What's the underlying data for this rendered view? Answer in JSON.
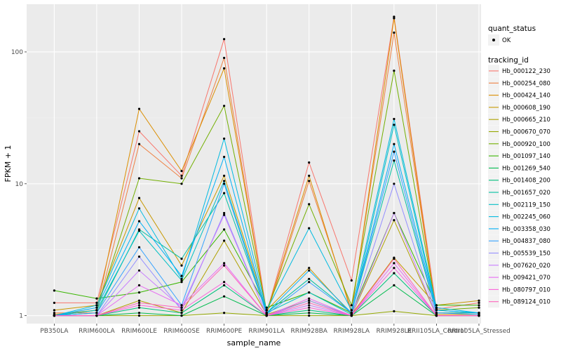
{
  "chart_data": {
    "type": "line",
    "xlabel": "sample_name",
    "ylabel": "FPKM + 1",
    "y_scale": "log10",
    "ylim": [
      0.87,
      230
    ],
    "y_ticks": [
      1,
      10,
      100
    ],
    "y_tick_labels": [
      "1",
      "10",
      "100"
    ],
    "categories": [
      "PB350LA",
      "RRIM600LA",
      "RRIM600LE",
      "RRIM600SE",
      "RRIM600PE",
      "RRIM901LA",
      "RRIM928BA",
      "RRIM928LA",
      "RRIM928LE",
      "RRII105LA_Control",
      "RRII105LA_Stressed"
    ],
    "category_labels": [
      "PB350LA",
      "RRIM600LA",
      "RRIM600LE",
      "RRIM600SE",
      "RRIM600PE",
      "RRIM901LA",
      "RRIM928BA",
      "RRIM928LA",
      "RRIM928LE",
      "RRII105LA_Control",
      "RRII105LA_Stressed"
    ],
    "grid": true,
    "legend_position": "right",
    "shape_legend": {
      "title": "quant_status",
      "items": [
        "OK"
      ]
    },
    "series": [
      {
        "name": "Hb_000122_230",
        "color": "#F8766D",
        "values": [
          1.25,
          1.25,
          25.0,
          11.5,
          125.0,
          1.05,
          14.5,
          1.85,
          185.0,
          1.12,
          1.25
        ]
      },
      {
        "name": "Hb_000254_080",
        "color": "#EE8042",
        "values": [
          1.05,
          1.05,
          20.0,
          11.0,
          90.0,
          1.02,
          10.5,
          1.1,
          140.0,
          1.05,
          1.05
        ]
      },
      {
        "name": "Hb_000424_140",
        "color": "#DB8E00",
        "values": [
          1.02,
          1.1,
          37.0,
          12.5,
          75.0,
          1.05,
          11.5,
          1.05,
          180.0,
          1.02,
          1.02
        ]
      },
      {
        "name": "Hb_000608_190",
        "color": "#C79800",
        "values": [
          1.1,
          1.2,
          7.8,
          2.4,
          11.5,
          1.1,
          2.3,
          1.02,
          2.75,
          1.2,
          1.3
        ]
      },
      {
        "name": "Hb_000665_210",
        "color": "#AFA100",
        "values": [
          1.0,
          1.0,
          1.3,
          1.05,
          3.7,
          1.02,
          1.3,
          1.0,
          5.3,
          1.0,
          1.0
        ]
      },
      {
        "name": "Hb_000670_070",
        "color": "#94A800",
        "values": [
          1.0,
          1.0,
          1.0,
          1.0,
          1.05,
          1.0,
          1.0,
          1.0,
          1.08,
          1.0,
          1.0
        ]
      },
      {
        "name": "Hb_000920_100",
        "color": "#72AF00",
        "values": [
          1.0,
          1.1,
          11.0,
          10.0,
          39.0,
          1.1,
          7.0,
          1.2,
          72.0,
          1.1,
          1.15
        ]
      },
      {
        "name": "Hb_001097_140",
        "color": "#39B600",
        "values": [
          1.55,
          1.35,
          1.5,
          1.8,
          4.5,
          1.15,
          1.5,
          1.05,
          6.0,
          1.2,
          1.2
        ]
      },
      {
        "name": "Hb_001269_540",
        "color": "#00BB4E",
        "values": [
          1.0,
          1.0,
          1.05,
          1.0,
          1.4,
          1.0,
          1.05,
          1.0,
          1.7,
          1.0,
          1.0
        ]
      },
      {
        "name": "Hb_001408_200",
        "color": "#00BF7D",
        "values": [
          1.0,
          1.0,
          1.15,
          1.05,
          1.7,
          1.0,
          1.1,
          1.0,
          2.1,
          1.0,
          1.0
        ]
      },
      {
        "name": "Hb_001657_020",
        "color": "#00C1A3",
        "values": [
          1.0,
          1.05,
          4.5,
          2.7,
          8.5,
          1.05,
          1.9,
          1.05,
          15.0,
          1.05,
          1.05
        ]
      },
      {
        "name": "Hb_002119_150",
        "color": "#00BFC4",
        "values": [
          1.0,
          1.1,
          4.4,
          1.85,
          10.5,
          1.05,
          1.5,
          1.02,
          28.0,
          1.1,
          1.05
        ]
      },
      {
        "name": "Hb_002245_060",
        "color": "#00BAE0",
        "values": [
          1.0,
          1.2,
          6.5,
          1.9,
          22.0,
          1.1,
          4.6,
          1.1,
          31.0,
          1.15,
          1.05
        ]
      },
      {
        "name": "Hb_003358_030",
        "color": "#00B0F6",
        "values": [
          1.0,
          1.15,
          5.2,
          2.0,
          16.0,
          1.05,
          2.2,
          1.05,
          20.0,
          1.1,
          1.05
        ]
      },
      {
        "name": "Hb_004837_080",
        "color": "#35A2FF",
        "values": [
          1.0,
          1.05,
          3.3,
          1.2,
          10.0,
          1.02,
          1.8,
          1.05,
          17.5,
          1.05,
          1.02
        ]
      },
      {
        "name": "Hb_005539_150",
        "color": "#9590FF",
        "values": [
          1.0,
          1.0,
          2.8,
          1.1,
          6.0,
          1.0,
          1.3,
          1.0,
          10.0,
          1.0,
          1.0
        ]
      },
      {
        "name": "Hb_007620_020",
        "color": "#C77CFF",
        "values": [
          1.0,
          1.0,
          2.2,
          1.15,
          5.8,
          1.0,
          1.2,
          1.0,
          6.0,
          1.0,
          1.0
        ]
      },
      {
        "name": "Hb_009421_070",
        "color": "#E76BF3",
        "values": [
          1.0,
          1.0,
          1.7,
          1.2,
          2.5,
          1.0,
          1.35,
          1.0,
          2.5,
          1.0,
          1.0
        ]
      },
      {
        "name": "Hb_080797_010",
        "color": "#FA62DB",
        "values": [
          1.0,
          1.0,
          1.2,
          1.1,
          1.8,
          1.0,
          1.15,
          1.0,
          2.3,
          1.0,
          1.0
        ]
      },
      {
        "name": "Hb_089124_010",
        "color": "#FF62BC",
        "values": [
          1.0,
          1.0,
          1.25,
          1.15,
          2.4,
          1.0,
          1.25,
          1.0,
          2.7,
          1.0,
          1.0
        ]
      }
    ]
  }
}
